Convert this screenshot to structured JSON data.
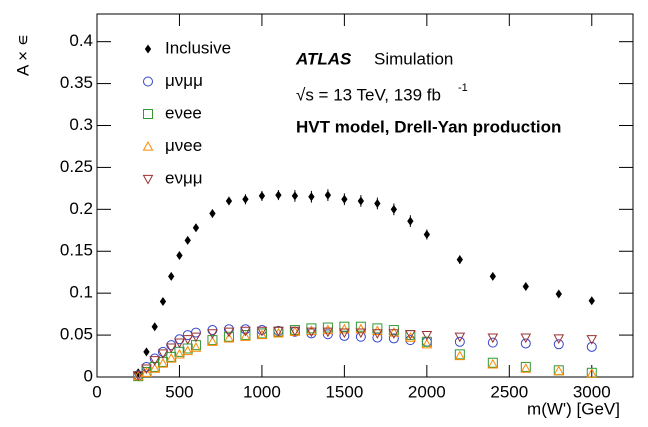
{
  "chart_data": {
    "type": "scatter",
    "xlabel": "m(W') [GeV]",
    "ylabel": "A × ∊",
    "annotations": [
      "ATLAS",
      "Simulation",
      "√s = 13 TeV, 139 fb",
      "-1",
      "HVT model, Drell-Yan production"
    ],
    "x": [
      250,
      300,
      350,
      400,
      450,
      500,
      550,
      600,
      700,
      800,
      900,
      1000,
      1100,
      1200,
      1300,
      1400,
      1500,
      1600,
      1700,
      1800,
      1900,
      2000,
      2200,
      2400,
      2600,
      2800,
      3000
    ],
    "series": [
      {
        "name": "Inclusive",
        "color": "#000000",
        "marker": "diamond",
        "values": [
          0.005,
          0.03,
          0.06,
          0.09,
          0.12,
          0.145,
          0.163,
          0.178,
          0.195,
          0.21,
          0.212,
          0.216,
          0.217,
          0.216,
          0.215,
          0.217,
          0.212,
          0.21,
          0.207,
          0.2,
          0.186,
          0.17,
          0.14,
          0.12,
          0.108,
          0.099,
          0.091
        ],
        "errors": [
          0.002,
          0.003,
          0.003,
          0.003,
          0.004,
          0.004,
          0.004,
          0.004,
          0.005,
          0.005,
          0.006,
          0.006,
          0.006,
          0.007,
          0.007,
          0.007,
          0.007,
          0.007,
          0.007,
          0.007,
          0.007,
          0.006,
          0.005,
          0.004,
          0.004,
          0.004,
          0.003
        ]
      },
      {
        "name": "μνμμ",
        "color": "#3344cc",
        "marker": "circle",
        "values": [
          0.002,
          0.012,
          0.022,
          0.03,
          0.038,
          0.045,
          0.05,
          0.053,
          0.056,
          0.057,
          0.057,
          0.056,
          0.055,
          0.054,
          0.052,
          0.051,
          0.049,
          0.048,
          0.047,
          0.046,
          0.044,
          0.042,
          0.042,
          0.041,
          0.04,
          0.039,
          0.036
        ]
      },
      {
        "name": "eνee",
        "color": "#339933",
        "marker": "square",
        "values": [
          0.001,
          0.006,
          0.012,
          0.018,
          0.024,
          0.03,
          0.034,
          0.038,
          0.044,
          0.048,
          0.05,
          0.052,
          0.054,
          0.056,
          0.058,
          0.059,
          0.06,
          0.06,
          0.058,
          0.056,
          0.05,
          0.042,
          0.027,
          0.017,
          0.012,
          0.008,
          0.005
        ]
      },
      {
        "name": "μνee",
        "color": "#ff8800",
        "marker": "triangle-up",
        "values": [
          0.001,
          0.005,
          0.01,
          0.016,
          0.022,
          0.027,
          0.031,
          0.035,
          0.042,
          0.046,
          0.048,
          0.05,
          0.052,
          0.054,
          0.055,
          0.056,
          0.057,
          0.057,
          0.055,
          0.053,
          0.047,
          0.039,
          0.025,
          0.015,
          0.01,
          0.007,
          0.004
        ]
      },
      {
        "name": "eνμμ",
        "color": "#993333",
        "marker": "triangle-down",
        "values": [
          0.002,
          0.01,
          0.02,
          0.028,
          0.035,
          0.041,
          0.045,
          0.048,
          0.052,
          0.054,
          0.055,
          0.055,
          0.055,
          0.055,
          0.054,
          0.054,
          0.053,
          0.053,
          0.052,
          0.052,
          0.051,
          0.05,
          0.048,
          0.047,
          0.047,
          0.046,
          0.045
        ]
      }
    ],
    "xlim": [
      0,
      3250
    ],
    "ylim": [
      0,
      0.433
    ],
    "xticks": [
      0,
      500,
      1000,
      1500,
      2000,
      2500,
      3000
    ],
    "yticks": [
      0,
      0.05,
      0.1,
      0.15,
      0.2,
      0.25,
      0.3,
      0.35,
      0.4
    ],
    "legend": "upper-left"
  }
}
